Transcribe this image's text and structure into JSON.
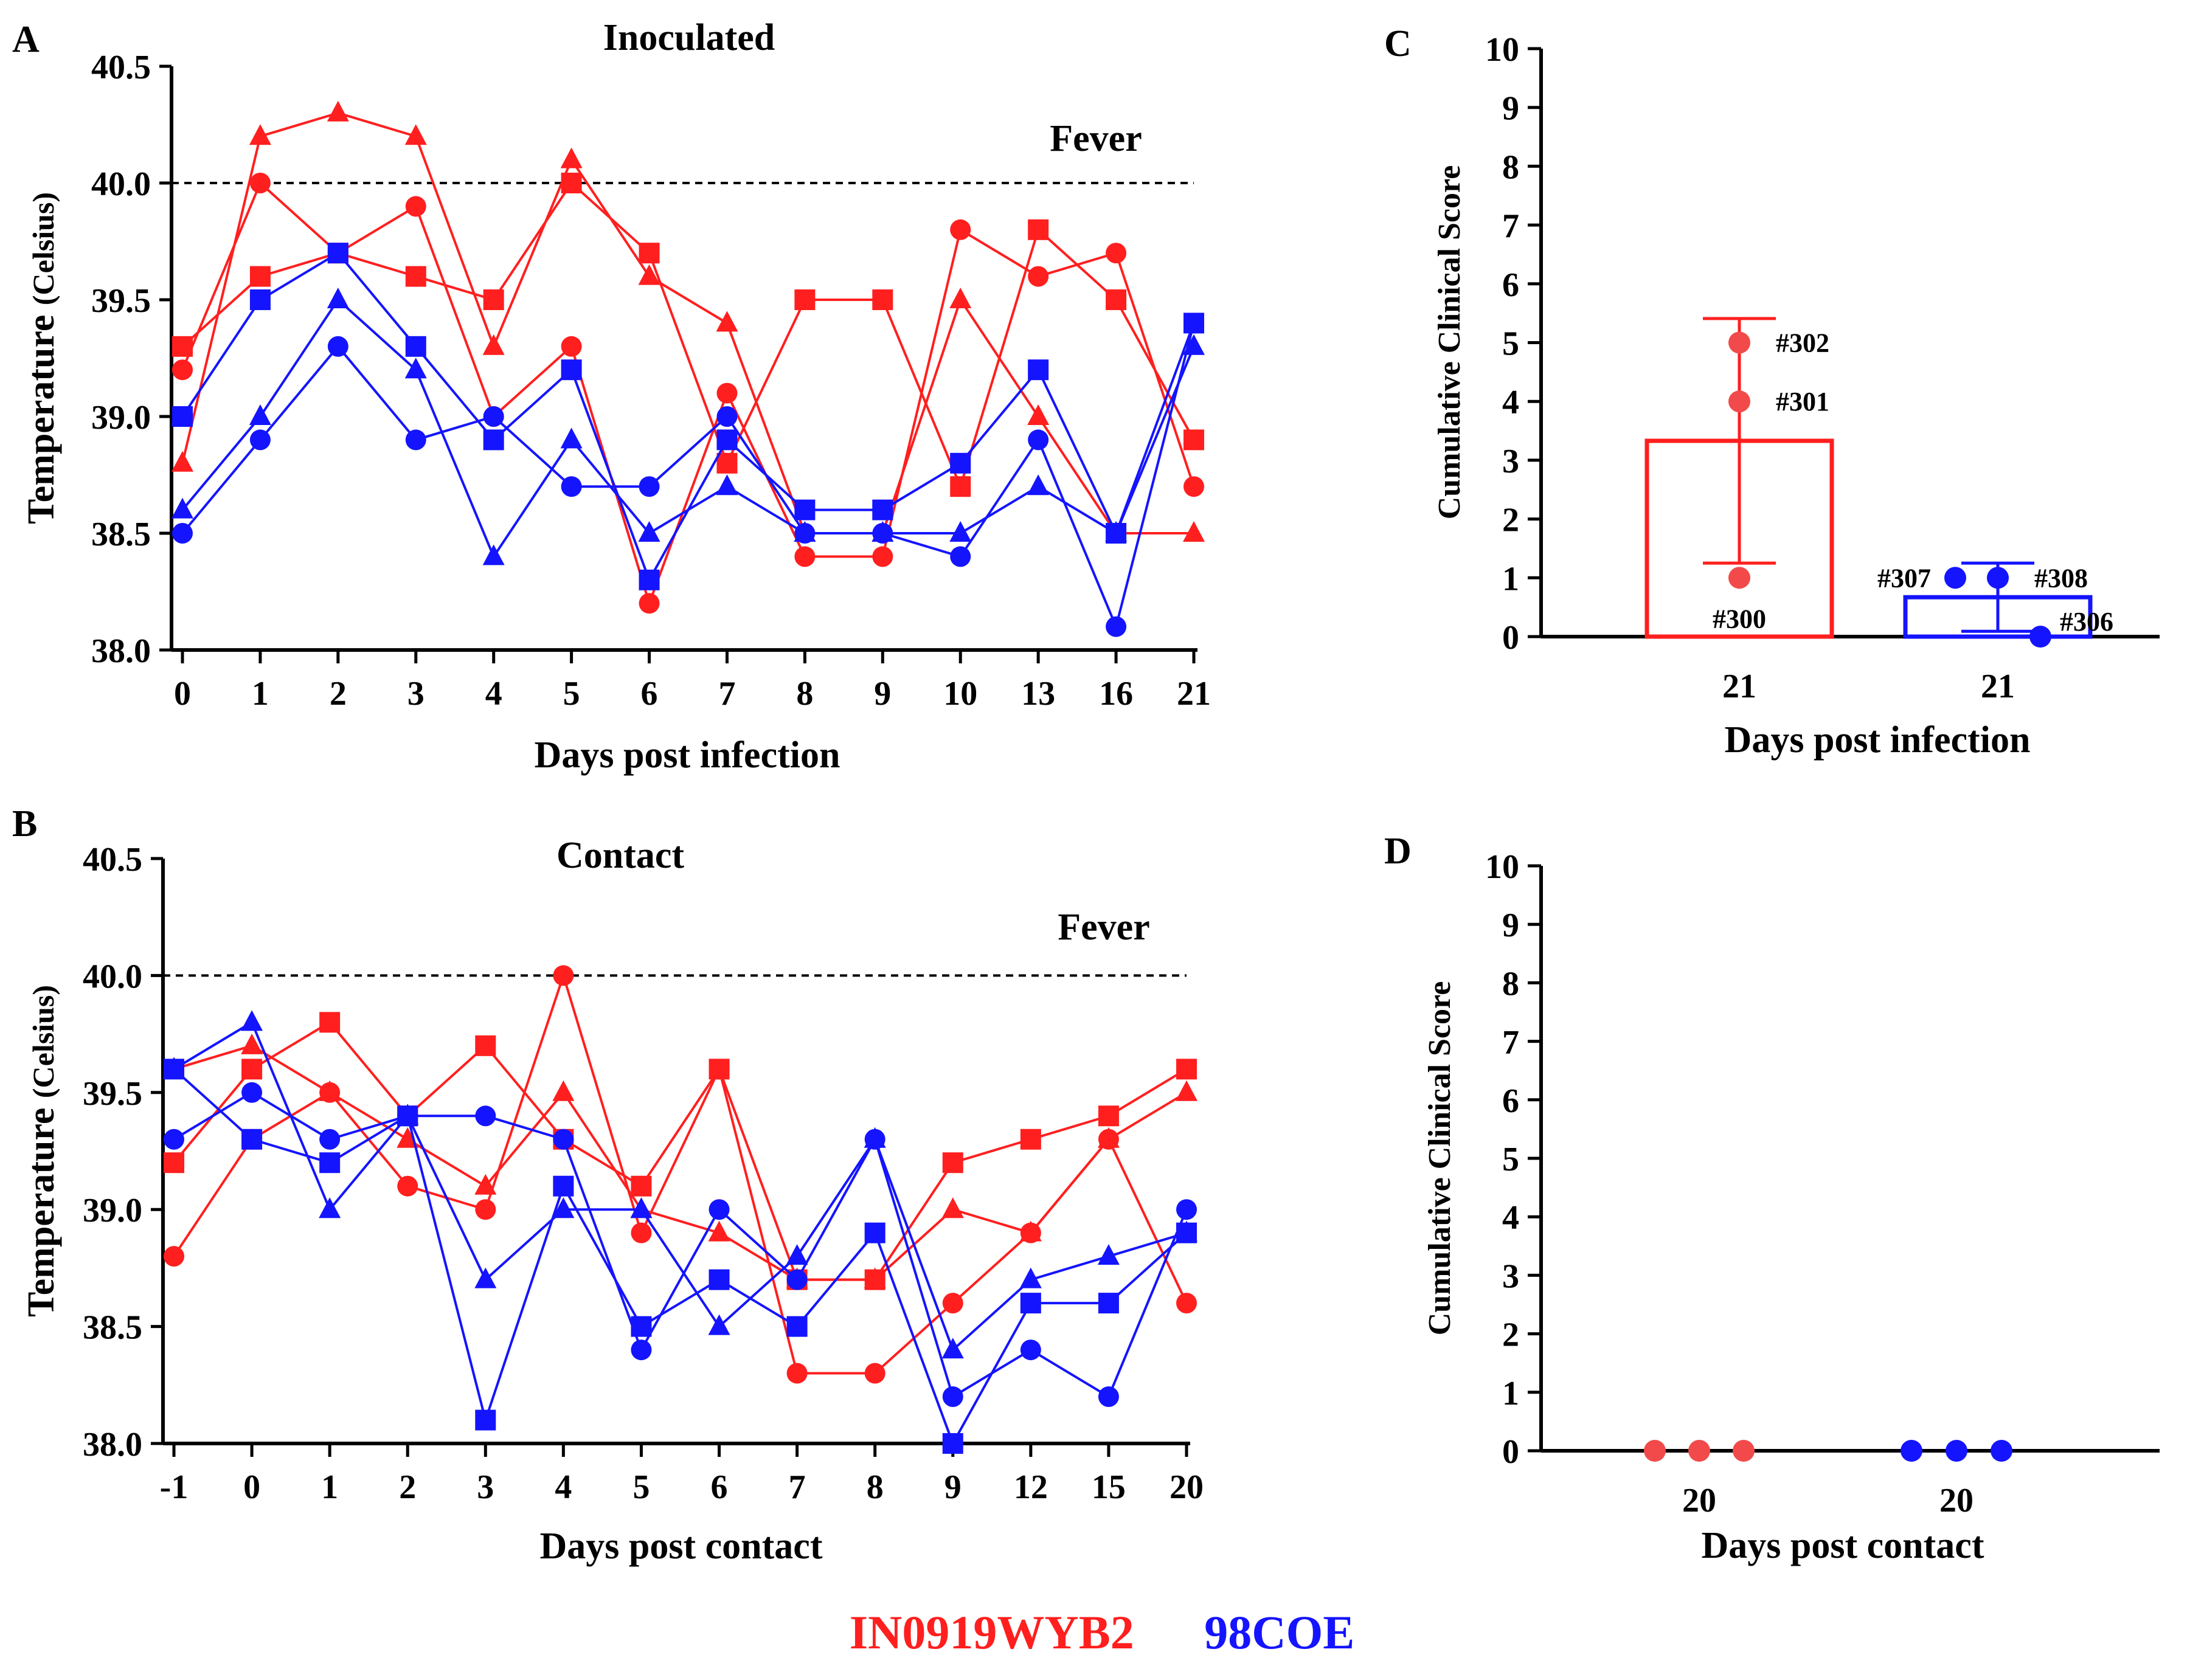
{
  "colors": {
    "red": "#ff1f1f",
    "blue": "#1414ff",
    "red_point": "#f24a4a",
    "axis": "#000000"
  },
  "chart_data": [
    {
      "panel": "A",
      "type": "line",
      "title": "Inoculated",
      "xlabel": "Days post infection",
      "ylabel": "Temperature",
      "ylabel_unit": "(Celsius)",
      "categories": [
        "0",
        "1",
        "2",
        "3",
        "4",
        "5",
        "6",
        "7",
        "8",
        "9",
        "10",
        "13",
        "16",
        "21"
      ],
      "ylim": [
        38.0,
        40.5
      ],
      "yticks": [
        "38.0",
        "38.5",
        "39.0",
        "39.5",
        "40.0",
        "40.5"
      ],
      "threshold": {
        "value": 40.0,
        "label": "Fever"
      },
      "series": [
        {
          "name": "IN0919WYB2 square",
          "group": "red",
          "marker": "square",
          "values": [
            39.3,
            39.6,
            39.7,
            39.6,
            39.5,
            40.0,
            39.7,
            38.8,
            39.5,
            39.5,
            38.7,
            39.8,
            39.5,
            38.9
          ]
        },
        {
          "name": "IN0919WYB2 circle",
          "group": "red",
          "marker": "circle",
          "values": [
            39.2,
            40.0,
            39.7,
            39.9,
            39.0,
            39.3,
            38.2,
            39.1,
            38.4,
            38.4,
            39.8,
            39.6,
            39.7,
            38.7
          ]
        },
        {
          "name": "IN0919WYB2 triangle",
          "group": "red",
          "marker": "triangle",
          "values": [
            38.8,
            40.2,
            40.3,
            40.2,
            39.3,
            40.1,
            39.6,
            39.4,
            38.5,
            38.5,
            39.5,
            39.0,
            38.5,
            38.5
          ]
        },
        {
          "name": "98COE square",
          "group": "blue",
          "marker": "square",
          "values": [
            39.0,
            39.5,
            39.7,
            39.3,
            38.9,
            39.2,
            38.3,
            38.9,
            38.6,
            38.6,
            38.8,
            39.2,
            38.5,
            39.4
          ]
        },
        {
          "name": "98COE circle",
          "group": "blue",
          "marker": "circle",
          "values": [
            38.5,
            38.9,
            39.3,
            38.9,
            39.0,
            38.7,
            38.7,
            39.0,
            38.5,
            38.5,
            38.4,
            38.9,
            38.1,
            39.4
          ]
        },
        {
          "name": "98COE triangle",
          "group": "blue",
          "marker": "triangle",
          "values": [
            38.6,
            39.0,
            39.5,
            39.2,
            38.4,
            38.9,
            38.5,
            38.7,
            38.5,
            38.5,
            38.5,
            38.7,
            38.5,
            39.3
          ]
        }
      ]
    },
    {
      "panel": "B",
      "type": "line",
      "title": "Contact",
      "xlabel": "Days post contact",
      "ylabel": "Temperature",
      "ylabel_unit": "(Celsius)",
      "categories": [
        "-1",
        "0",
        "1",
        "2",
        "3",
        "4",
        "5",
        "6",
        "7",
        "8",
        "9",
        "12",
        "15",
        "20"
      ],
      "ylim": [
        38.0,
        40.5
      ],
      "yticks": [
        "38.0",
        "38.5",
        "39.0",
        "39.5",
        "40.0",
        "40.5"
      ],
      "threshold": {
        "value": 40.0,
        "label": "Fever"
      },
      "series": [
        {
          "name": "IN0919WYB2 square",
          "group": "red",
          "marker": "square",
          "values": [
            39.2,
            39.6,
            39.8,
            39.4,
            39.7,
            39.3,
            39.1,
            39.6,
            38.7,
            38.7,
            39.2,
            39.3,
            39.4,
            39.6
          ]
        },
        {
          "name": "IN0919WYB2 circle",
          "group": "red",
          "marker": "circle",
          "values": [
            38.8,
            39.3,
            39.5,
            39.1,
            39.0,
            40.0,
            38.9,
            39.6,
            38.3,
            38.3,
            38.6,
            38.9,
            39.3,
            38.6
          ]
        },
        {
          "name": "IN0919WYB2 triangle",
          "group": "red",
          "marker": "triangle",
          "values": [
            39.6,
            39.7,
            39.5,
            39.3,
            39.1,
            39.5,
            39.0,
            38.9,
            38.7,
            38.7,
            39.0,
            38.9,
            39.3,
            39.5
          ]
        },
        {
          "name": "98COE square",
          "group": "blue",
          "marker": "square",
          "values": [
            39.6,
            39.3,
            39.2,
            39.4,
            38.1,
            39.1,
            38.5,
            38.7,
            38.5,
            38.9,
            38.0,
            38.6,
            38.6,
            38.9
          ]
        },
        {
          "name": "98COE circle",
          "group": "blue",
          "marker": "circle",
          "values": [
            39.3,
            39.5,
            39.3,
            39.4,
            39.4,
            39.3,
            38.4,
            39.0,
            38.7,
            39.3,
            38.2,
            38.4,
            38.2,
            39.0
          ]
        },
        {
          "name": "98COE triangle",
          "group": "blue",
          "marker": "triangle",
          "values": [
            39.6,
            39.8,
            39.0,
            39.4,
            38.7,
            39.0,
            39.0,
            38.5,
            38.8,
            39.3,
            38.4,
            38.7,
            38.8,
            38.9
          ]
        }
      ]
    },
    {
      "panel": "C",
      "type": "bar",
      "xlabel": "Days post infection",
      "ylabel": "Cumulative Clinical Score",
      "ylim": [
        0,
        10
      ],
      "yticks": [
        "0",
        "1",
        "2",
        "3",
        "4",
        "5",
        "6",
        "7",
        "8",
        "9",
        "10"
      ],
      "categories": [
        "21",
        "21"
      ],
      "bars": [
        {
          "group": "red",
          "mean": 3.33,
          "error": 2.08,
          "points": [
            {
              "id": "#302",
              "value": 5
            },
            {
              "id": "#301",
              "value": 4
            },
            {
              "id": "#300",
              "value": 1
            }
          ]
        },
        {
          "group": "blue",
          "mean": 0.67,
          "error": 0.58,
          "points": [
            {
              "id": "#307",
              "value": 1
            },
            {
              "id": "#308",
              "value": 1
            },
            {
              "id": "#306",
              "value": 0
            }
          ]
        }
      ]
    },
    {
      "panel": "D",
      "type": "bar",
      "xlabel": "Days post contact",
      "ylabel": "Cumulative Clinical Score",
      "ylim": [
        0,
        10
      ],
      "yticks": [
        "0",
        "1",
        "2",
        "3",
        "4",
        "5",
        "6",
        "7",
        "8",
        "9",
        "10"
      ],
      "categories": [
        "20",
        "20"
      ],
      "bars": [
        {
          "group": "red",
          "mean": 0,
          "error": 0,
          "points": [
            {
              "id": "",
              "value": 0
            },
            {
              "id": "",
              "value": 0
            },
            {
              "id": "",
              "value": 0
            }
          ]
        },
        {
          "group": "blue",
          "mean": 0,
          "error": 0,
          "points": [
            {
              "id": "",
              "value": 0
            },
            {
              "id": "",
              "value": 0
            },
            {
              "id": "",
              "value": 0
            }
          ]
        }
      ]
    }
  ],
  "legend": {
    "red_label": "IN0919WYB2",
    "blue_label": "98COE"
  }
}
